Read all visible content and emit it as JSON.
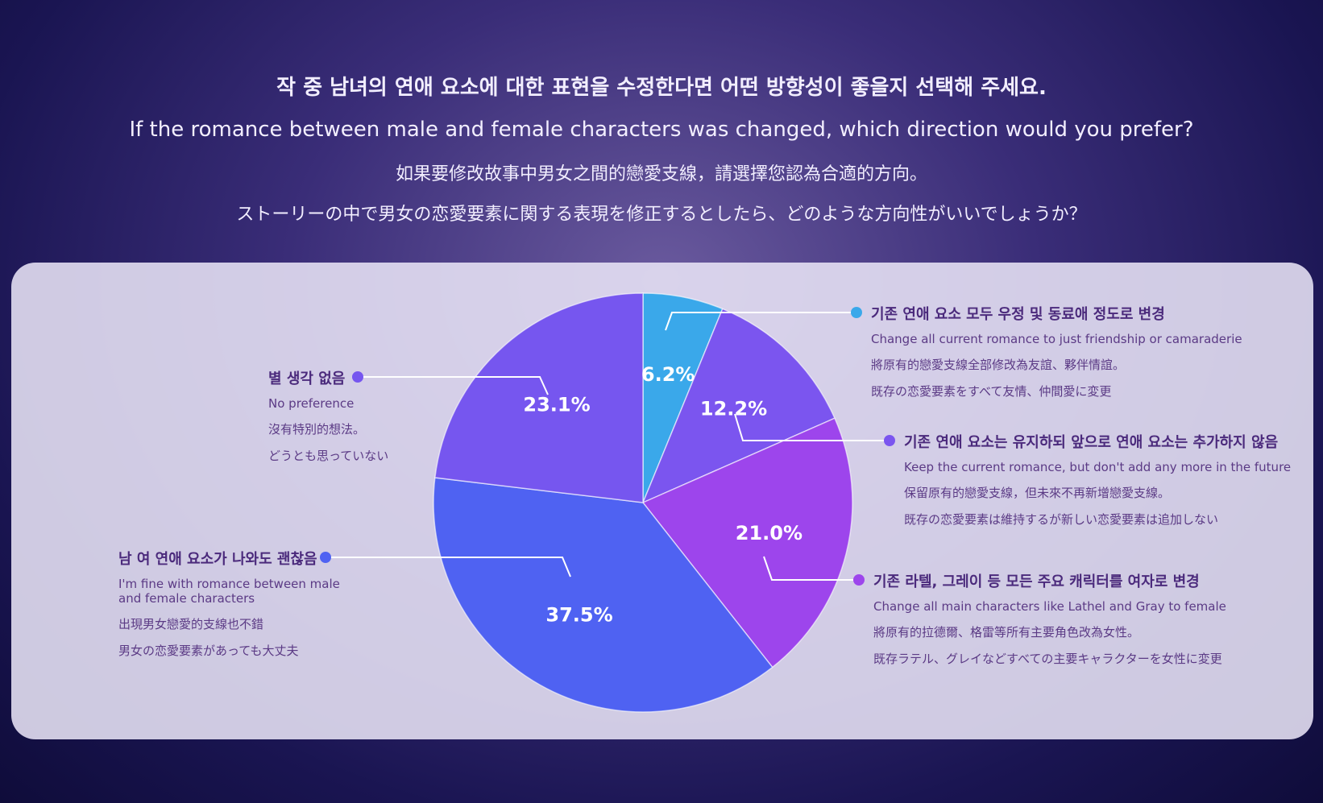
{
  "chart_data": {
    "type": "pie",
    "title": "작 중 남녀의 연애 요소에 대한 표현을 수정한다면 어떤 방향성이 좋을지 선택해 주세요.",
    "subtitles": [
      "If the romance between male and female characters was changed, which direction would you prefer?",
      "如果要修改故事中男女之間的戀愛支線，請選擇您認為合適的方向。",
      "ストーリーの中で男女の恋愛要素に関する表現を修正するとしたら、どのような方向性がいいでしょうか？"
    ],
    "categories": [
      "기존 연애 요소 모두 우정 및 동료애 정도로 변경",
      "기존 연애 요소는 유지하되 앞으로 연애 요소는 추가하지 않음",
      "기존 라텔, 그레이 등 모든 주요 캐릭터를 여자로 변경",
      "남 여 연애 요소가 나와도 괜찮음",
      "별 생각 없음"
    ],
    "descriptions": [
      [
        "Change all current romance to just friendship or camaraderie",
        "將原有的戀愛支線全部修改為友誼、夥伴情誼。",
        "既存の恋愛要素をすべて友情、仲間愛に変更"
      ],
      [
        "Keep the current romance, but don't add any more in the future",
        "保留原有的戀愛支線，但未來不再新增戀愛支線。",
        "既存の恋愛要素は維持するが新しい恋愛要素は追加しない"
      ],
      [
        "Change all main characters like Lathel and Gray to female",
        "將原有的拉德爾、格雷等所有主要角色改為女性。",
        "既存ラテル、グレイなどすべての主要キャラクターを女性に変更"
      ],
      [
        "I'm fine with romance between male and female characters",
        "出現男女戀愛的支線也不錯",
        "男女の恋愛要素があっても大丈夫"
      ],
      [
        "No preference",
        "沒有特別的想法。",
        "どうとも思っていない"
      ]
    ],
    "values": [
      6.2,
      12.2,
      21.0,
      37.5,
      23.1
    ],
    "value_labels": [
      "6.2%",
      "12.2%",
      "21.0%",
      "37.5%",
      "23.1%"
    ],
    "colors": [
      "#3aa8ea",
      "#7b55ef",
      "#9d45ec",
      "#4f62f2",
      "#7656ef"
    ]
  }
}
